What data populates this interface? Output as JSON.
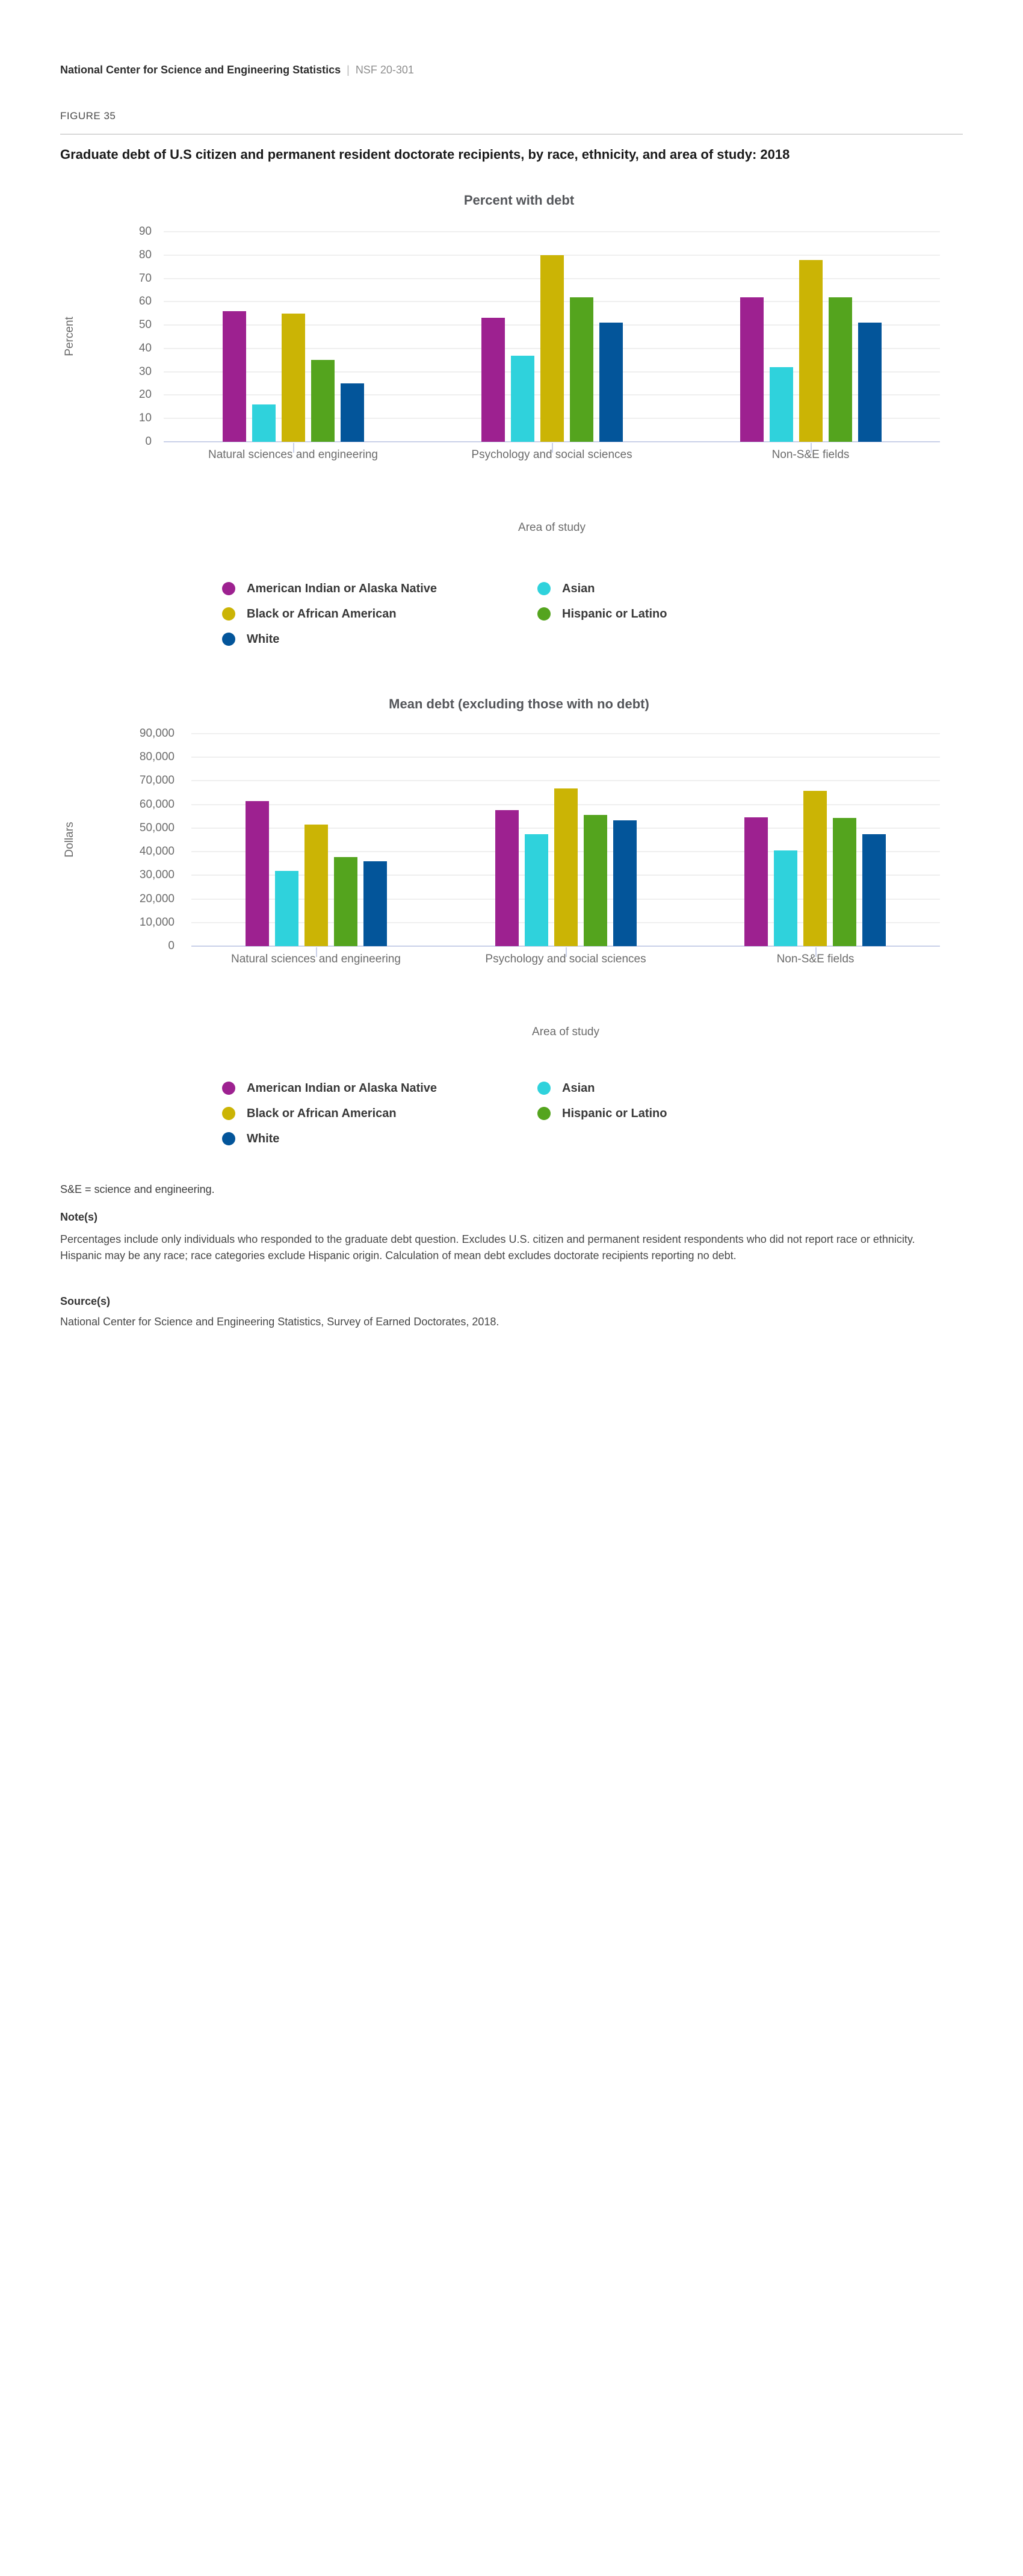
{
  "page": {
    "header": {
      "brand": "National Center for Science and Engineering Statistics",
      "separator": "|",
      "report_id": "NSF 20-301"
    },
    "figure_label": "FIGURE 35",
    "figure_title": "Graduate debt of U.S citizen and permanent resident doctorate recipients, by race, ethnicity, and area of study: 2018"
  },
  "chart_data": [
    {
      "type": "bar",
      "title": "Percent with debt",
      "xlabel": "Area of study",
      "ylabel": "Percent",
      "ylim": [
        0,
        90
      ],
      "ytick_step": 10,
      "grid": true,
      "legend_position": "bottom",
      "categories": [
        "Natural sciences and engineering",
        "Psychology and social sciences",
        "Non-S&E fields"
      ],
      "series": [
        {
          "name": "American Indian or Alaska Native",
          "color": "#9D2190",
          "values": [
            56,
            53,
            62
          ]
        },
        {
          "name": "Asian",
          "color": "#2FD2DC",
          "values": [
            16,
            37,
            32
          ]
        },
        {
          "name": "Black or African American",
          "color": "#CBB405",
          "values": [
            55,
            80,
            78
          ]
        },
        {
          "name": "Hispanic or Latino",
          "color": "#54A41E",
          "values": [
            35,
            62,
            62
          ]
        },
        {
          "name": "White",
          "color": "#03559A",
          "values": [
            25,
            51,
            51
          ]
        }
      ]
    },
    {
      "type": "bar",
      "title": "Mean debt (excluding those with no debt)",
      "xlabel": "Area of study",
      "ylabel": "Dollars",
      "ylim": [
        0,
        90000
      ],
      "ytick_step": 10000,
      "grid": true,
      "legend_position": "bottom",
      "categories": [
        "Natural sciences and engineering",
        "Psychology and social sciences",
        "Non-S&E fields"
      ],
      "series": [
        {
          "name": "American Indian or Alaska Native",
          "color": "#9D2190",
          "values": [
            61500,
            57700,
            54600
          ]
        },
        {
          "name": "Asian",
          "color": "#2FD2DC",
          "values": [
            31800,
            47300,
            40500
          ]
        },
        {
          "name": "Black or African American",
          "color": "#CBB405",
          "values": [
            51500,
            66800,
            65700
          ]
        },
        {
          "name": "Hispanic or Latino",
          "color": "#54A41E",
          "values": [
            37800,
            55700,
            54200
          ]
        },
        {
          "name": "White",
          "color": "#03559A",
          "values": [
            35900,
            53400,
            47500
          ]
        }
      ]
    }
  ],
  "notes": {
    "abbreviation": "S&E = science and engineering.",
    "notes_heading": "Note(s)",
    "notes_text": "Percentages include only individuals who responded to the graduate debt question. Excludes U.S. citizen and permanent resident respondents who did not report race or ethnicity. Hispanic may be any race; race categories exclude Hispanic origin. Calculation of mean debt excludes doctorate recipients reporting no debt.",
    "source_heading": "Source(s)",
    "source_text": "National Center for Science and Engineering Statistics, Survey of Earned Doctorates, 2018."
  }
}
